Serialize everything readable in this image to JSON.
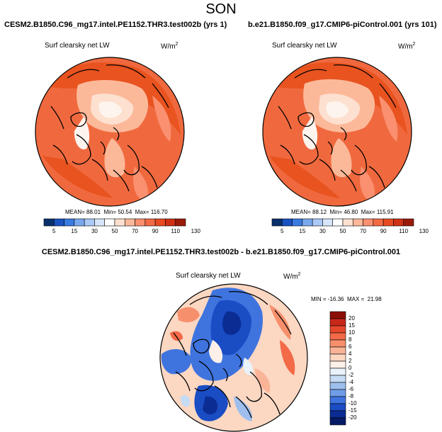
{
  "title": "SON",
  "panels": [
    {
      "case": "CESM2.B1850.C96_mg17.intel.PE1152.THR3.test002b (yrs 1)",
      "variable": "Surf clearsky net LW",
      "units": "W/m",
      "units_exp": "2",
      "mean_label": "MEAN=",
      "mean": "88.01",
      "min_label": "Min=",
      "min": "50.54",
      "max_label": "Max=",
      "max": "116.70"
    },
    {
      "case": "b.e21.B1850.f09_g17.CMIP6-piControl.001 (yrs 101)",
      "variable": "Surf clearsky net LW",
      "units": "W/m",
      "units_exp": "2",
      "mean_label": "MEAN=",
      "mean": "88.12",
      "min_label": "Min=",
      "min": "46.80",
      "max_label": "Max=",
      "max": "115.91"
    }
  ],
  "colorbar_levels": [
    "5",
    "15",
    "30",
    "50",
    "70",
    "90",
    "110",
    "130"
  ],
  "colorbar_colors": [
    "#08306b",
    "#1a52c2",
    "#3a7be0",
    "#7aa8ee",
    "#aac9f5",
    "#d7e6fb",
    "#ffffff",
    "#fde0cf",
    "#fcb99a",
    "#fa9070",
    "#f26a44",
    "#e84a22",
    "#cf3014",
    "#9a1a08"
  ],
  "diff": {
    "title": "CESM2.B1850.C96_mg17.intel.PE1152.THR3.test002b - b.e21.B1850.f09_g17.CMIP6-piControl.001",
    "variable": "Surf clearsky net LW",
    "units": "W/m",
    "units_exp": "2",
    "min_label": "MIN =",
    "min": "-16.36",
    "max_label": "MAX =",
    "max": "21.98",
    "levels": [
      "20",
      "15",
      "10",
      "8",
      "6",
      "4",
      "2",
      "0",
      "-2",
      "-4",
      "-6",
      "-8",
      "-10",
      "-15",
      "-20"
    ],
    "colors": [
      "#8c0e06",
      "#c8281a",
      "#e6482c",
      "#f26a48",
      "#f6906c",
      "#f9b497",
      "#fcd7c2",
      "#fdf0e8",
      "#eaf2fb",
      "#c6dbf4",
      "#9ebfee",
      "#6f9de8",
      "#3f74df",
      "#1a4cc4",
      "#0b2c93",
      "#061a66"
    ]
  }
}
